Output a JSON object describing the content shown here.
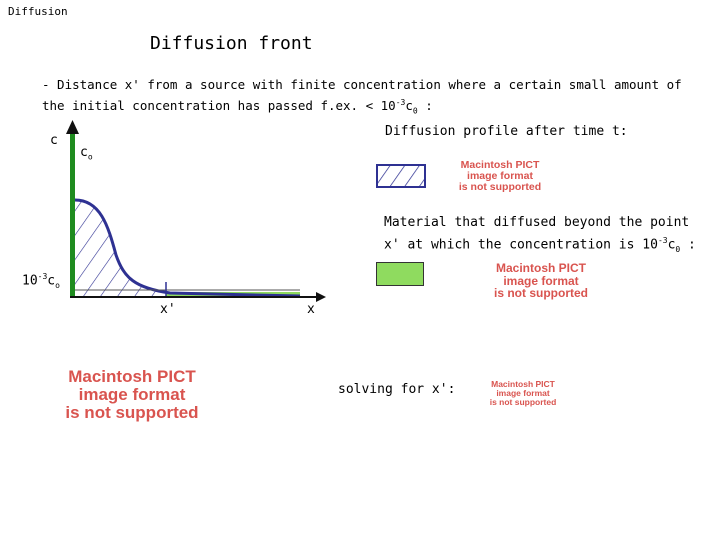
{
  "header": {
    "title": "Diffusion"
  },
  "slide": {
    "title": "Diffusion front",
    "bullet": {
      "text_before": "- Distance x' from a source with finite concentration where a certain small amount of the initial concentration has passed f.ex. < 10",
      "exponent": "-3",
      "symbol": "c",
      "subscript": "0",
      "text_after": " :"
    }
  },
  "graph": {
    "y_label": "c",
    "c0": {
      "base": "c",
      "sub": "o"
    },
    "threshold": {
      "prefix": "10",
      "exp": "-3",
      "base": "c",
      "sub": "o"
    },
    "xprime_label": "x'",
    "x_label": "x",
    "colors": {
      "axis": "#1f8c1f",
      "curve": "#2e3192",
      "green_fill": "#8fdb5f"
    }
  },
  "legend": {
    "profile_text": "Diffusion profile after time t:",
    "material_text": "Material that diffused beyond the point x' at which the concentration is 10",
    "material_exp": "-3",
    "material_base": "c",
    "material_sub": "0",
    "material_tail": " :"
  },
  "solving_label": "solving for x':",
  "pict_placeholder": {
    "line1": "Macintosh PICT",
    "line2": "image format",
    "line3": "is not supported"
  }
}
